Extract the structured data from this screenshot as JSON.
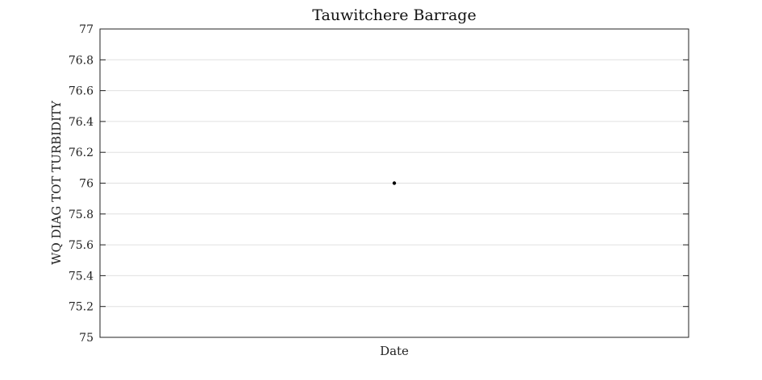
{
  "chart_data": {
    "type": "scatter",
    "title": "Tauwitchere Barrage",
    "xlabel": "Date",
    "ylabel": "WQ DIAG TOT TURBIDITY",
    "ylim": [
      75,
      77
    ],
    "yticks": [
      75,
      75.2,
      75.4,
      75.6,
      75.8,
      76,
      76.2,
      76.4,
      76.6,
      76.8,
      77
    ],
    "ytick_labels": [
      "75",
      "75.2",
      "75.4",
      "75.6",
      "75.8",
      "76",
      "76.2",
      "76.4",
      "76.6",
      "76.8",
      "77"
    ],
    "grid": true,
    "series": [
      {
        "points": [
          {
            "y": 76
          }
        ]
      }
    ],
    "colors": {
      "point": "#000000",
      "grid": "#e0e0e0",
      "axis": "#222222"
    }
  }
}
